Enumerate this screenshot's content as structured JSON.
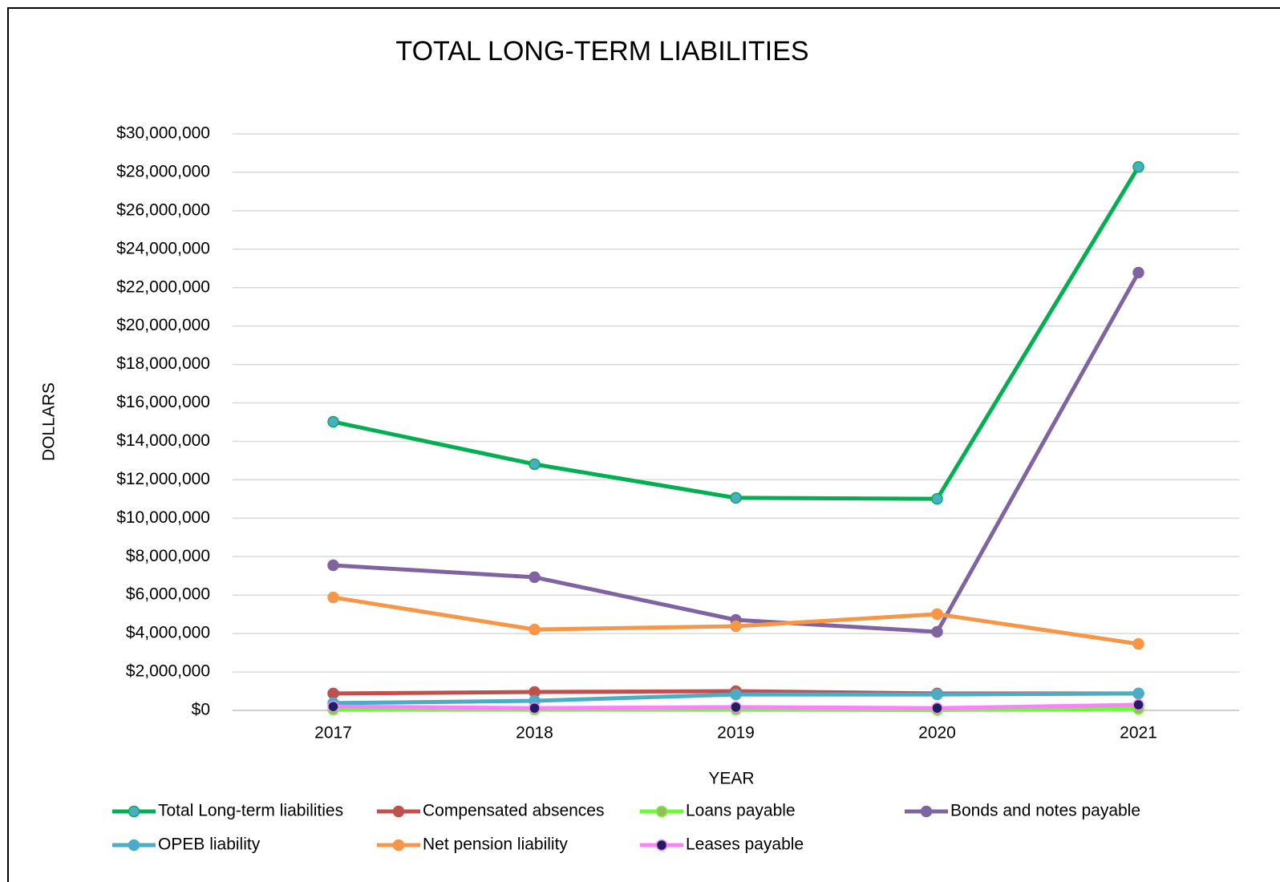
{
  "chart_data": {
    "type": "line",
    "title": "TOTAL LONG-TERM LIABILITIES",
    "x_label": "YEAR",
    "y_label": "DOLLARS",
    "categories": [
      "2017",
      "2018",
      "2019",
      "2020",
      "2021"
    ],
    "series": [
      {
        "name": "Total Long-term liabilities",
        "color": "#00b050",
        "marker_color": "#4bacc6",
        "values": [
          15020000,
          12810000,
          11060000,
          11010000,
          28280000
        ]
      },
      {
        "name": "Compensated absences",
        "color": "#c0504d",
        "marker_color": "#c0504d",
        "values": [
          880000,
          960000,
          1000000,
          880000,
          880000
        ]
      },
      {
        "name": "Loans payable",
        "color": "#66ff33",
        "marker_color": "#9bbb59",
        "values": [
          40000,
          40000,
          40000,
          20000,
          80000
        ]
      },
      {
        "name": "Bonds and notes payable",
        "color": "#8064a2",
        "marker_color": "#8064a2",
        "values": [
          7550000,
          6930000,
          4710000,
          4090000,
          22780000
        ]
      },
      {
        "name": "OPEB liability",
        "color": "#4bacc6",
        "marker_color": "#4bacc6",
        "values": [
          380000,
          500000,
          830000,
          830000,
          880000
        ]
      },
      {
        "name": "Net pension liability",
        "color": "#f79646",
        "marker_color": "#f79646",
        "values": [
          5880000,
          4210000,
          4380000,
          5010000,
          3460000
        ]
      },
      {
        "name": "Leases payable",
        "color": "#ff80ff",
        "marker_color": "#1f1f5f",
        "values": [
          200000,
          120000,
          170000,
          120000,
          290000
        ]
      }
    ],
    "ylim": [
      0,
      30000000
    ],
    "yticks": [
      {
        "value": 0,
        "label": "$0"
      },
      {
        "value": 2000000,
        "label": "$2,000,000"
      },
      {
        "value": 4000000,
        "label": "$4,000,000"
      },
      {
        "value": 6000000,
        "label": "$6,000,000"
      },
      {
        "value": 8000000,
        "label": "$8,000,000"
      },
      {
        "value": 10000000,
        "label": "$10,000,000"
      },
      {
        "value": 12000000,
        "label": "$12,000,000"
      },
      {
        "value": 14000000,
        "label": "$14,000,000"
      },
      {
        "value": 16000000,
        "label": "$16,000,000"
      },
      {
        "value": 18000000,
        "label": "$18,000,000"
      },
      {
        "value": 20000000,
        "label": "$20,000,000"
      },
      {
        "value": 22000000,
        "label": "$22,000,000"
      },
      {
        "value": 24000000,
        "label": "$24,000,000"
      },
      {
        "value": 26000000,
        "label": "$26,000,000"
      },
      {
        "value": 28000000,
        "label": "$28,000,000"
      },
      {
        "value": 30000000,
        "label": "$30,000,000"
      }
    ],
    "grid": true,
    "legend": "bottom"
  }
}
